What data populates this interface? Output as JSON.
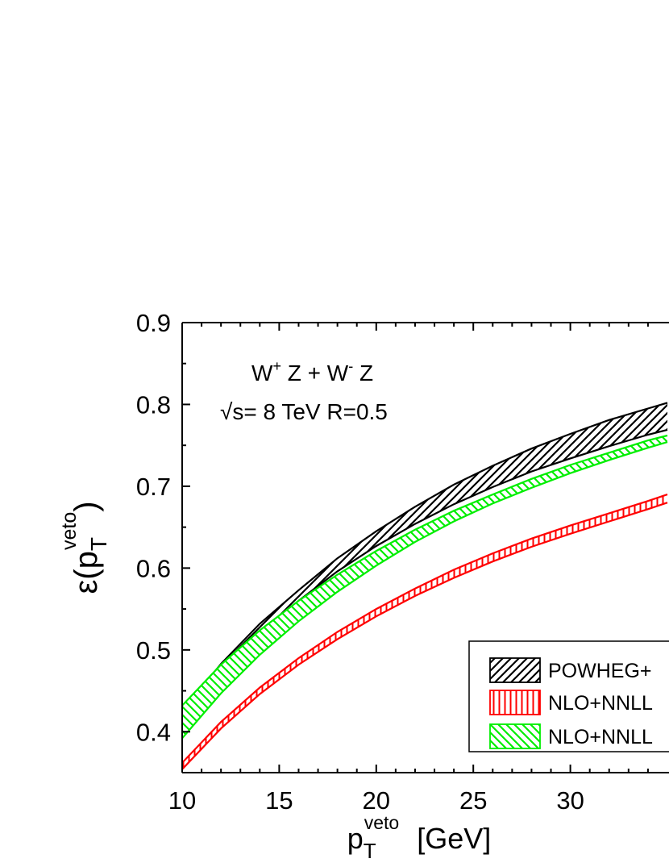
{
  "chart_data": {
    "type": "area",
    "x_label_main": "p",
    "x_label_sub": "T",
    "x_label_sup": "veto",
    "x_label_unit": "[GeV]",
    "y_label_main": "ε(p",
    "y_label_sub": "T",
    "y_label_sup": "veto",
    "y_label_close": ")",
    "xlim": [
      10,
      35
    ],
    "ylim": [
      0.35,
      0.9
    ],
    "x_ticks": [
      "10",
      "15",
      "20",
      "25",
      "30"
    ],
    "y_ticks": [
      "0.4",
      "0.5",
      "0.6",
      "0.7",
      "0.8",
      "0.9"
    ],
    "annotations": {
      "line1_a": "W",
      "line1_a_sup": "+",
      "line1_b": " Z + W",
      "line1_b_sup": "-",
      "line1_c": " Z",
      "line2": "√s= 8 TeV R=0.5"
    },
    "series": [
      {
        "name": "POWHEG+",
        "color": "#000000",
        "hatch": "diagonal-forward",
        "x": [
          10,
          12,
          14,
          16,
          18,
          20,
          22,
          24,
          26,
          28,
          30,
          32,
          34,
          35
        ],
        "upper": [
          0.425,
          0.483,
          0.532,
          0.573,
          0.612,
          0.645,
          0.675,
          0.702,
          0.725,
          0.746,
          0.764,
          0.781,
          0.795,
          0.802
        ],
        "lower": [
          0.405,
          0.466,
          0.518,
          0.56,
          0.596,
          0.627,
          0.654,
          0.678,
          0.699,
          0.718,
          0.734,
          0.749,
          0.763,
          0.769
        ]
      },
      {
        "name": "NLO+NNLL",
        "color": "#ff0000",
        "hatch": "vertical",
        "x": [
          10,
          12,
          14,
          16,
          18,
          20,
          22,
          24,
          26,
          28,
          30,
          32,
          34,
          35
        ],
        "upper": [
          0.362,
          0.412,
          0.454,
          0.49,
          0.522,
          0.55,
          0.575,
          0.598,
          0.618,
          0.636,
          0.652,
          0.667,
          0.682,
          0.69
        ],
        "lower": [
          0.354,
          0.404,
          0.446,
          0.482,
          0.513,
          0.541,
          0.566,
          0.588,
          0.608,
          0.626,
          0.642,
          0.657,
          0.672,
          0.68
        ]
      },
      {
        "name": "NLO+NNLL",
        "color": "#00ee00",
        "hatch": "diagonal-back",
        "x": [
          10,
          12,
          14,
          16,
          18,
          20,
          22,
          24,
          26,
          28,
          30,
          32,
          34,
          35
        ],
        "upper": [
          0.432,
          0.482,
          0.524,
          0.56,
          0.592,
          0.621,
          0.647,
          0.67,
          0.69,
          0.709,
          0.726,
          0.741,
          0.756,
          0.762
        ],
        "lower": [
          0.392,
          0.447,
          0.494,
          0.535,
          0.571,
          0.603,
          0.632,
          0.657,
          0.679,
          0.698,
          0.716,
          0.732,
          0.747,
          0.754
        ]
      }
    ],
    "legend": {
      "placement": "bottom-right"
    },
    "grid": false
  }
}
